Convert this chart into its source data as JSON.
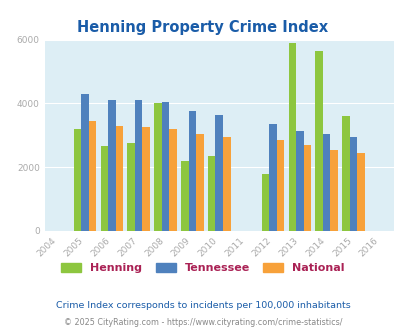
{
  "title": "Henning Property Crime Index",
  "years": [
    2004,
    2005,
    2006,
    2007,
    2008,
    2009,
    2010,
    2011,
    2012,
    2013,
    2014,
    2015,
    2016
  ],
  "data_years": [
    2005,
    2006,
    2007,
    2008,
    2009,
    2010,
    2012,
    2013,
    2014,
    2015
  ],
  "henning": [
    3200,
    2650,
    2750,
    4000,
    2200,
    2350,
    1800,
    5900,
    5650,
    3600
  ],
  "tennessee": [
    4300,
    4100,
    4100,
    4050,
    3750,
    3650,
    3350,
    3150,
    3050,
    2950
  ],
  "national": [
    3450,
    3300,
    3250,
    3200,
    3050,
    2950,
    2850,
    2700,
    2550,
    2450
  ],
  "color_henning": "#8dc63f",
  "color_tennessee": "#4f81bd",
  "color_national": "#f7a13a",
  "bg_color": "#ddeef5",
  "ylim": [
    0,
    6000
  ],
  "yticks": [
    0,
    2000,
    4000,
    6000
  ],
  "title_color": "#1a5ca8",
  "legend_labels": [
    "Henning",
    "Tennessee",
    "National"
  ],
  "legend_patch_colors": [
    "#8dc63f",
    "#4f81bd",
    "#f7a13a"
  ],
  "legend_text_color": "#aa2255",
  "footnote1": "Crime Index corresponds to incidents per 100,000 inhabitants",
  "footnote2": "© 2025 CityRating.com - https://www.cityrating.com/crime-statistics/",
  "footnote1_color": "#1a5ca8",
  "footnote2_color": "#888888",
  "bar_width": 0.28,
  "tick_color": "#aaaaaa",
  "grid_color": "#ffffff"
}
